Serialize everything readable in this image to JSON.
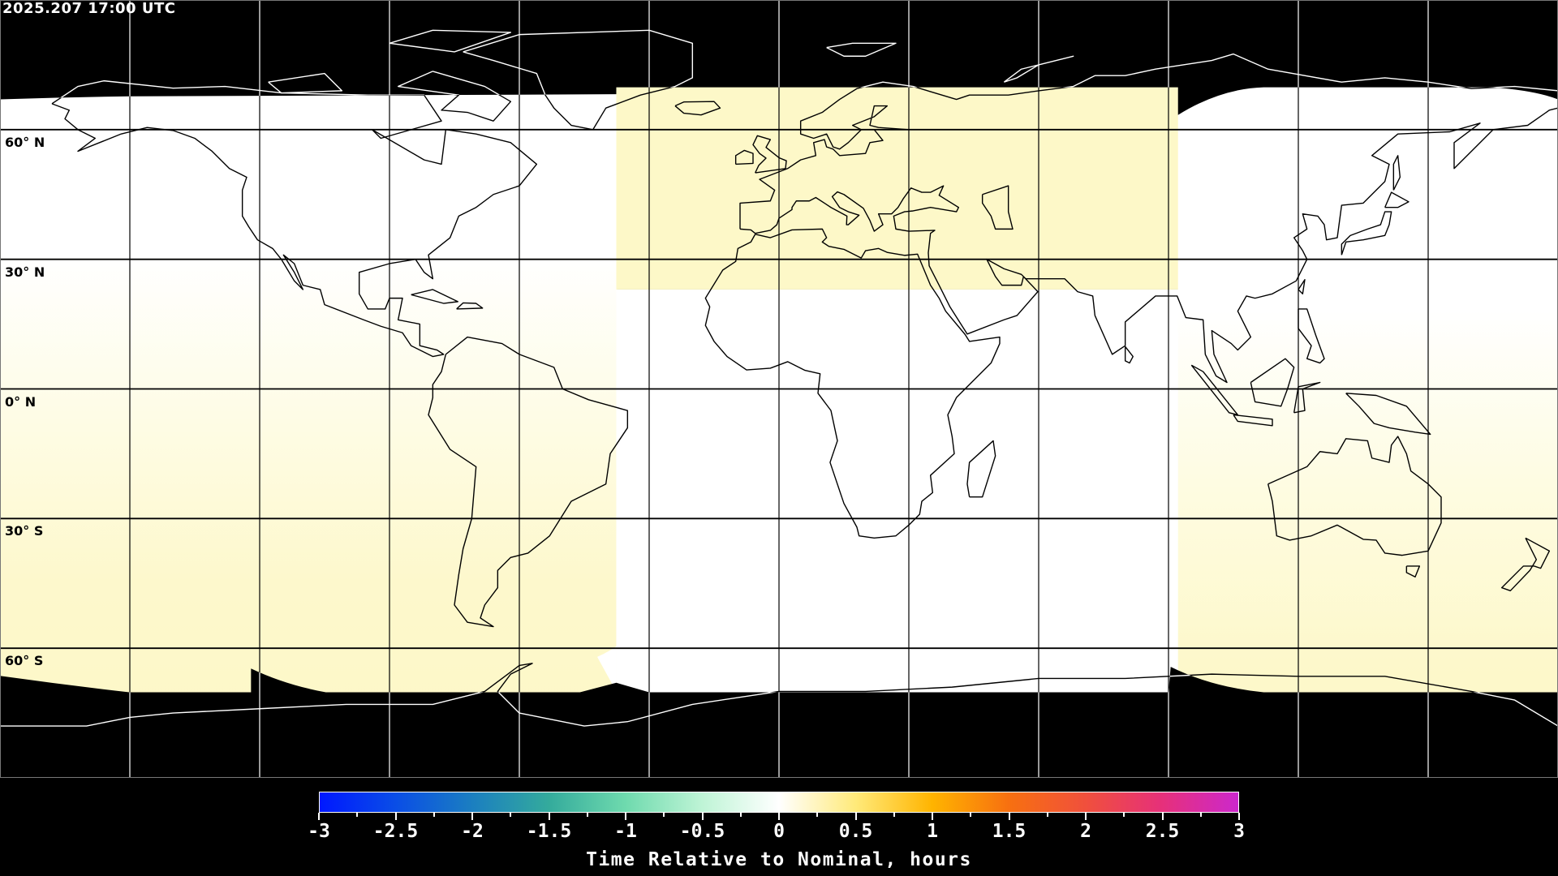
{
  "header": {
    "timestamp": "2025.207 17:00 UTC"
  },
  "map": {
    "projection": "equirectangular",
    "lon_range": [
      -180,
      180
    ],
    "lat_range": [
      -90,
      90
    ],
    "graticule_lon_step": 30,
    "graticule_lat_step": 30,
    "lat_labels": [
      {
        "lat": 60,
        "text": "60° N"
      },
      {
        "lat": 30,
        "text": "30° N"
      },
      {
        "lat": 0,
        "text": "0° N"
      },
      {
        "lat": -30,
        "text": "30° S"
      },
      {
        "lat": -60,
        "text": "60° S"
      }
    ],
    "colors": {
      "no_data": "#000000",
      "coverage_yellow": "#fdf8c8",
      "coverage_white": "#ffffff",
      "coastline_on_data": "#000000",
      "coastline_on_nodata": "#ffffff"
    }
  },
  "colorbar": {
    "title": "Time Relative to Nominal, hours",
    "min": -3,
    "max": 3,
    "tick_labels": [
      "-3",
      "-2.5",
      "-2",
      "-1.5",
      "-1",
      "-0.5",
      "0",
      "0.5",
      "1",
      "1.5",
      "2",
      "2.5",
      "3"
    ],
    "colormap": [
      {
        "value": -3,
        "color": "#0018ff"
      },
      {
        "value": -2.5,
        "color": "#0a4ee6"
      },
      {
        "value": -2,
        "color": "#1b7fc0"
      },
      {
        "value": -1.5,
        "color": "#34ab9c"
      },
      {
        "value": -1,
        "color": "#6fdaae"
      },
      {
        "value": -0.5,
        "color": "#bff4d6"
      },
      {
        "value": 0,
        "color": "#ffffff"
      },
      {
        "value": 0.5,
        "color": "#ffea7a"
      },
      {
        "value": 1,
        "color": "#ffb400"
      },
      {
        "value": 1.5,
        "color": "#f77010"
      },
      {
        "value": 2,
        "color": "#f0503c"
      },
      {
        "value": 2.5,
        "color": "#e6307a"
      },
      {
        "value": 3,
        "color": "#cc28cc"
      }
    ]
  }
}
